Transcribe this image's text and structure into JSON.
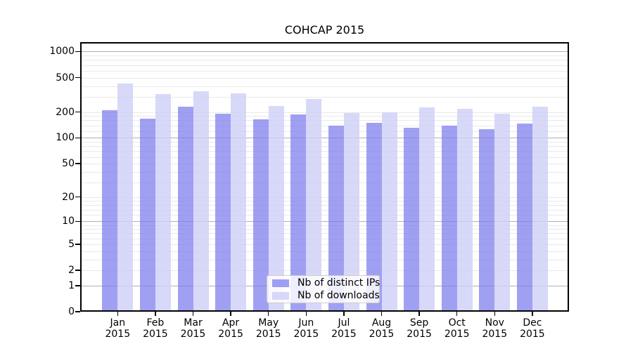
{
  "title": "COHCAP 2015",
  "legend": {
    "items": [
      {
        "label": "Nb of distinct IPs"
      },
      {
        "label": "Nb of downloads"
      }
    ]
  },
  "colors": {
    "distinct_ips_fill": "rgba(124,124,238,0.72)",
    "downloads_fill": "rgba(206,206,248,0.80)",
    "distinct_ips_hex": "#a6a6f0",
    "downloads_hex": "#d9d9f9",
    "grid_major": "#b0b0b0",
    "grid_minor": "#e9e9e9",
    "axis": "#000000",
    "background": "#ffffff"
  },
  "chart_data": {
    "type": "bar",
    "title": "COHCAP 2015",
    "categories": [
      "Jan 2015",
      "Feb 2015",
      "Mar 2015",
      "Apr 2015",
      "May 2015",
      "Jun 2015",
      "Jul 2015",
      "Aug 2015",
      "Sep 2015",
      "Oct 2015",
      "Nov 2015",
      "Dec 2015"
    ],
    "series": [
      {
        "name": "Nb of distinct IPs",
        "values": [
          211,
          168,
          231,
          190,
          165,
          187,
          139,
          151,
          131,
          140,
          126,
          148
        ]
      },
      {
        "name": "Nb of downloads",
        "values": [
          424,
          321,
          349,
          329,
          233,
          284,
          194,
          199,
          226,
          216,
          191,
          231
        ]
      }
    ],
    "yscale": "log1p",
    "ylim": [
      0,
      1290
    ],
    "yticks": [
      0,
      1,
      2,
      5,
      10,
      20,
      50,
      100,
      200,
      500,
      1000
    ],
    "grid_major_lines": [
      1,
      10,
      100,
      1000
    ],
    "grid_minor_lines": [
      2,
      3,
      4,
      5,
      6,
      7,
      8,
      9,
      12,
      14,
      16,
      18,
      20,
      30,
      40,
      50,
      60,
      70,
      80,
      90,
      120,
      140,
      160,
      180,
      200,
      300,
      400,
      500,
      600,
      700,
      800,
      900
    ],
    "legend_position": "lower center",
    "xlabel": "",
    "ylabel": ""
  }
}
